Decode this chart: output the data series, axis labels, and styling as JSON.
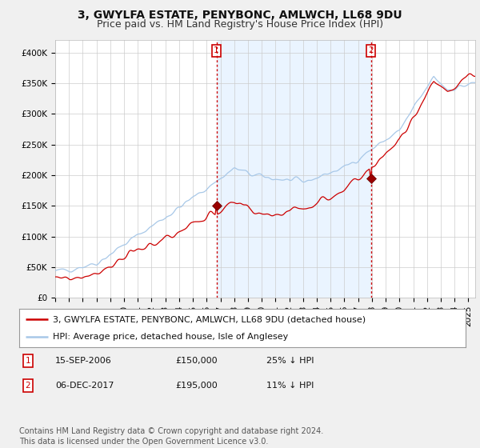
{
  "title": "3, GWYLFA ESTATE, PENYBONC, AMLWCH, LL68 9DU",
  "subtitle": "Price paid vs. HM Land Registry's House Price Index (HPI)",
  "ylim": [
    0,
    420000
  ],
  "yticks": [
    0,
    50000,
    100000,
    150000,
    200000,
    250000,
    300000,
    350000,
    400000
  ],
  "ytick_labels": [
    "£0",
    "£50K",
    "£100K",
    "£150K",
    "£200K",
    "£250K",
    "£300K",
    "£350K",
    "£400K"
  ],
  "xlim_start": 1995.0,
  "xlim_end": 2025.5,
  "hpi_color": "#a8c8e8",
  "hpi_fill_color": "#ddeeff",
  "price_color": "#cc0000",
  "vline_color": "#cc0000",
  "bg_color": "#f0f0f0",
  "plot_bg_color": "#ffffff",
  "transaction1_x": 2006.71,
  "transaction1_y": 150000,
  "transaction2_x": 2017.92,
  "transaction2_y": 195000,
  "legend_line1": "3, GWYLFA ESTATE, PENYBONC, AMLWCH, LL68 9DU (detached house)",
  "legend_line2": "HPI: Average price, detached house, Isle of Anglesey",
  "table_data": [
    [
      "1",
      "15-SEP-2006",
      "£150,000",
      "25% ↓ HPI"
    ],
    [
      "2",
      "06-DEC-2017",
      "£195,000",
      "11% ↓ HPI"
    ]
  ],
  "footer": "Contains HM Land Registry data © Crown copyright and database right 2024.\nThis data is licensed under the Open Government Licence v3.0.",
  "title_fontsize": 10,
  "subtitle_fontsize": 9,
  "tick_fontsize": 7.5,
  "legend_fontsize": 8,
  "footer_fontsize": 7
}
